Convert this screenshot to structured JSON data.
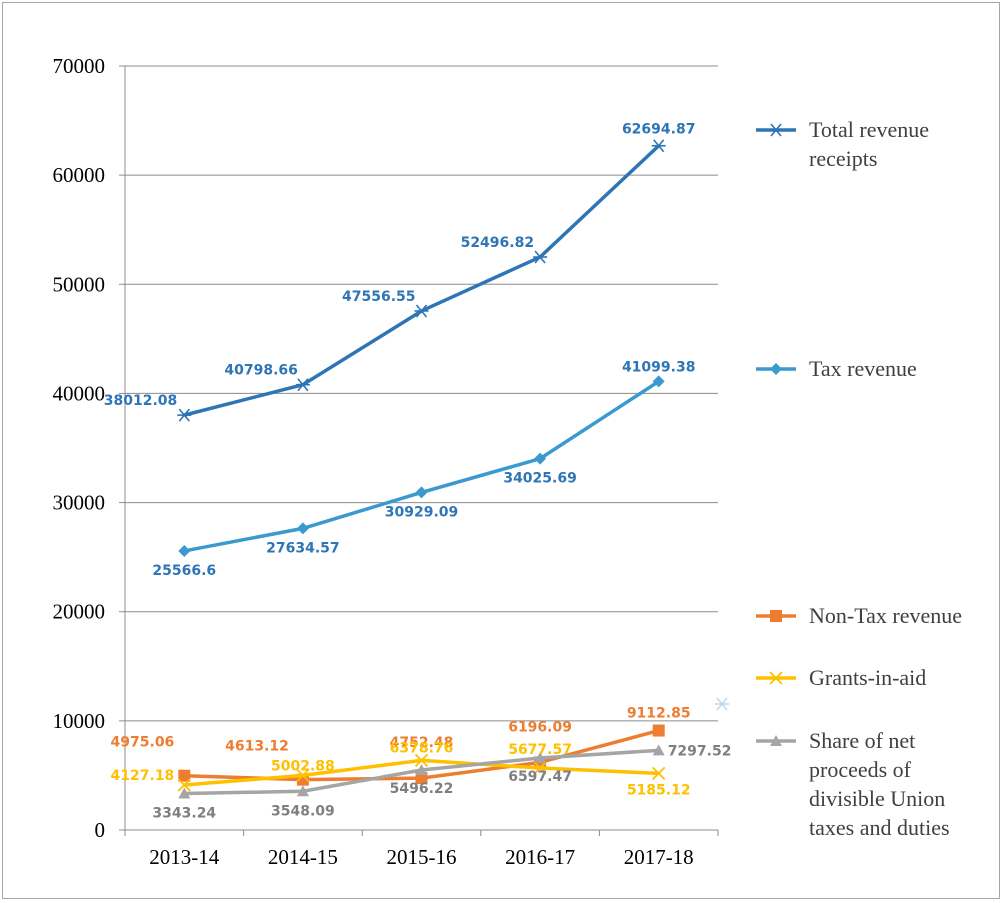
{
  "chart_data": {
    "type": "line",
    "title": "",
    "xlabel": "",
    "ylabel": "",
    "ylim": [
      0,
      70000
    ],
    "yticks": [
      "0",
      "10000",
      "20000",
      "30000",
      "40000",
      "50000",
      "60000",
      "70000"
    ],
    "categories": [
      "2013-14",
      "2014-15",
      "2015-16",
      "2016-17",
      "2017-18"
    ],
    "grid": "horizontal",
    "legend_position": "right",
    "series": [
      {
        "name": "Total revenue receipts",
        "color": "#2E75B6",
        "marker": "asterisk",
        "values": [
          38012.08,
          40798.66,
          47556.55,
          52496.82,
          62694.87
        ],
        "labels": [
          "38012.08",
          "40798.66",
          "47556.55",
          "52496.82",
          "62694.87"
        ],
        "label_color": "#2E75B6"
      },
      {
        "name": "Tax revenue",
        "color": "#3A9AD0",
        "marker": "diamond",
        "values": [
          25566.6,
          27634.57,
          30929.09,
          34025.69,
          41099.38
        ],
        "labels": [
          "25566.6",
          "27634.57",
          "30929.09",
          "34025.69",
          "41099.38"
        ],
        "label_color": "#2E75B6"
      },
      {
        "name": "Non-Tax revenue",
        "color": "#ED7D31",
        "marker": "square",
        "values": [
          4975.06,
          4613.12,
          4752.48,
          6196.09,
          9112.85
        ],
        "labels": [
          "4975.06",
          "4613.12",
          "4752.48",
          "6196.09",
          "9112.85"
        ],
        "label_color": "#ED7D31"
      },
      {
        "name": "Grants-in-aid",
        "color": "#FFC000",
        "marker": "x",
        "values": [
          4127.18,
          5002.88,
          6378.76,
          5677.57,
          5185.12
        ],
        "labels": [
          "4127.18",
          "5002.88",
          "6378.76",
          "5677.57",
          "5185.12"
        ],
        "label_color": "#FFC000"
      },
      {
        "name": "Share of net proceeds of divisible Union taxes and duties",
        "legend_lines": [
          "Share of net",
          "proceeds of",
          "divisible Union",
          "taxes and duties"
        ],
        "color": "#A5A5A5",
        "marker": "triangle",
        "values": [
          3343.24,
          3548.09,
          5496.22,
          6597.47,
          7297.52
        ],
        "labels": [
          "3343.24",
          "3548.09",
          "5496.22",
          "6597.47",
          "7297.52"
        ],
        "label_color": "#7F7F7F"
      }
    ]
  }
}
